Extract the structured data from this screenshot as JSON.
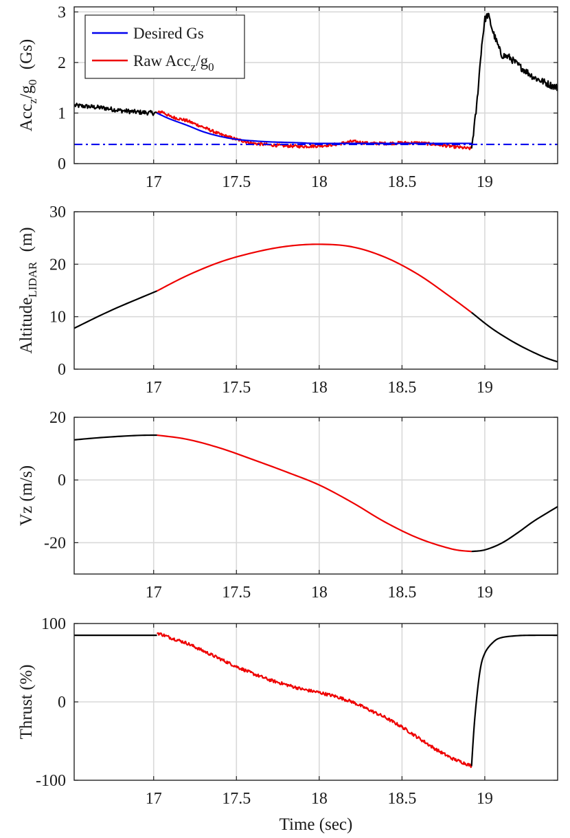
{
  "colors": {
    "desired": "#0000ee",
    "raw": "#ee0000",
    "active": "#ee0000",
    "outside": "#000000"
  },
  "chart_data": [
    {
      "id": "acc",
      "type": "line",
      "ylabel_main": "Acc",
      "ylabel_sub1": "z",
      "ylabel_mid": "/g",
      "ylabel_sub2": "0",
      "ylabel_unit": "(Gs)",
      "xlim": [
        16.52,
        19.44
      ],
      "ylim": [
        0,
        3.1
      ],
      "xticks": [
        17,
        17.5,
        18,
        18.5,
        19
      ],
      "xtick_labels": [
        "17",
        "17.5",
        "18",
        "18.5",
        "19"
      ],
      "yticks": [
        0,
        1,
        2,
        3
      ],
      "ytick_labels": [
        "0",
        "1",
        "2",
        "3"
      ],
      "legend": [
        {
          "label": "Desired Gs",
          "color_key": "desired"
        },
        {
          "label_main": "Raw Acc",
          "label_sub1": "z",
          "label_mid": "/g",
          "label_sub2": "0",
          "color_key": "raw"
        }
      ],
      "series": [
        {
          "name": "Raw Acc_z/g_0 (pre)",
          "color_key": "outside",
          "noise": 0.045,
          "x": [
            16.52,
            16.6,
            16.7,
            16.8,
            16.9,
            17.0,
            17.02
          ],
          "y": [
            1.15,
            1.13,
            1.1,
            1.05,
            1.02,
            1.0,
            1.0
          ]
        },
        {
          "name": "Raw Acc_z/g_0",
          "color_key": "raw",
          "noise": 0.03,
          "x": [
            17.02,
            17.05,
            17.1,
            17.2,
            17.3,
            17.4,
            17.5,
            17.6,
            17.7,
            17.8,
            17.9,
            18.0,
            18.1,
            18.2,
            18.3,
            18.4,
            18.5,
            18.6,
            18.7,
            18.8,
            18.9,
            18.92
          ],
          "y": [
            1.0,
            1.03,
            0.93,
            0.85,
            0.72,
            0.58,
            0.48,
            0.4,
            0.37,
            0.35,
            0.34,
            0.35,
            0.38,
            0.44,
            0.4,
            0.4,
            0.41,
            0.41,
            0.38,
            0.34,
            0.3,
            0.3
          ]
        },
        {
          "name": "Raw Acc_z/g_0 (post)",
          "color_key": "outside",
          "noise": 0.07,
          "x": [
            18.92,
            18.95,
            18.98,
            19.0,
            19.02,
            19.05,
            19.1,
            19.15,
            19.2,
            19.3,
            19.4,
            19.44
          ],
          "y": [
            0.3,
            1.1,
            2.3,
            2.85,
            2.95,
            2.6,
            2.15,
            2.1,
            1.95,
            1.7,
            1.55,
            1.5
          ]
        },
        {
          "name": "Desired Gs",
          "color_key": "desired",
          "noise": 0,
          "x": [
            17.02,
            17.1,
            17.2,
            17.3,
            17.4,
            17.5,
            17.6,
            17.7,
            17.8,
            17.9,
            18.0,
            18.5,
            18.92
          ],
          "y": [
            1.0,
            0.88,
            0.76,
            0.63,
            0.54,
            0.48,
            0.45,
            0.43,
            0.42,
            0.41,
            0.4,
            0.4,
            0.4
          ]
        },
        {
          "name": "Desired Gs reference",
          "color_key": "desired",
          "dash": true,
          "noise": 0,
          "x": [
            16.52,
            19.44
          ],
          "y": [
            0.38,
            0.38
          ]
        }
      ]
    },
    {
      "id": "alt",
      "type": "line",
      "ylabel_main": "Altitude",
      "ylabel_sub1": "LIDAR",
      "ylabel_mid": "",
      "ylabel_sub2": "",
      "ylabel_unit": "(m)",
      "xlim": [
        16.52,
        19.44
      ],
      "ylim": [
        0,
        30
      ],
      "xticks": [
        17,
        17.5,
        18,
        18.5,
        19
      ],
      "xtick_labels": [
        "17",
        "17.5",
        "18",
        "18.5",
        "19"
      ],
      "yticks": [
        0,
        10,
        20,
        30
      ],
      "ytick_labels": [
        "0",
        "10",
        "20",
        "30"
      ],
      "series": [
        {
          "name": "Altitude (pre)",
          "color_key": "outside",
          "noise": 0,
          "x": [
            16.52,
            16.75,
            17.02
          ],
          "y": [
            7.8,
            11.3,
            14.9
          ]
        },
        {
          "name": "Altitude_LIDAR",
          "color_key": "active",
          "noise": 0,
          "x": [
            17.02,
            17.2,
            17.4,
            17.6,
            17.8,
            18.0,
            18.2,
            18.4,
            18.6,
            18.8,
            18.92
          ],
          "y": [
            14.9,
            17.8,
            20.4,
            22.2,
            23.4,
            23.8,
            23.3,
            21.3,
            18.0,
            13.6,
            10.8
          ]
        },
        {
          "name": "Altitude (post)",
          "color_key": "outside",
          "noise": 0,
          "x": [
            18.92,
            19.05,
            19.2,
            19.35,
            19.44
          ],
          "y": [
            10.8,
            7.6,
            4.7,
            2.4,
            1.4
          ]
        }
      ]
    },
    {
      "id": "vz",
      "type": "line",
      "ylabel_main": "Vz (m/s)",
      "ylabel_sub1": "",
      "ylabel_mid": "",
      "ylabel_sub2": "",
      "ylabel_unit": "",
      "xlim": [
        16.52,
        19.44
      ],
      "ylim": [
        -30,
        20
      ],
      "xticks": [
        17,
        17.5,
        18,
        18.5,
        19
      ],
      "xtick_labels": [
        "17",
        "17.5",
        "18",
        "18.5",
        "19"
      ],
      "yticks": [
        -20,
        0,
        20
      ],
      "ytick_labels": [
        "-20",
        "0",
        "20"
      ],
      "series": [
        {
          "name": "Vz (pre)",
          "color_key": "outside",
          "noise": 0,
          "x": [
            16.52,
            16.7,
            16.9,
            17.02
          ],
          "y": [
            12.8,
            13.6,
            14.2,
            14.3
          ]
        },
        {
          "name": "Vz",
          "color_key": "active",
          "noise": 0,
          "x": [
            17.02,
            17.2,
            17.4,
            17.6,
            17.8,
            18.0,
            18.2,
            18.4,
            18.6,
            18.8,
            18.92
          ],
          "y": [
            14.3,
            13.0,
            10.2,
            6.5,
            2.6,
            -1.6,
            -7.2,
            -13.5,
            -18.6,
            -22.0,
            -22.8
          ]
        },
        {
          "name": "Vz (post)",
          "color_key": "outside",
          "noise": 0,
          "x": [
            18.92,
            19.0,
            19.1,
            19.2,
            19.3,
            19.44
          ],
          "y": [
            -22.8,
            -22.3,
            -20.2,
            -16.8,
            -13.0,
            -8.5
          ]
        }
      ]
    },
    {
      "id": "thrust",
      "type": "line",
      "ylabel_main": "Thrust (%)",
      "ylabel_sub1": "",
      "ylabel_mid": "",
      "ylabel_sub2": "",
      "ylabel_unit": "",
      "xlabel": "Time (sec)",
      "xlim": [
        16.52,
        19.44
      ],
      "ylim": [
        -100,
        100
      ],
      "xticks": [
        17,
        17.5,
        18,
        18.5,
        19
      ],
      "xtick_labels": [
        "17",
        "17.5",
        "18",
        "18.5",
        "19"
      ],
      "yticks": [
        -100,
        0,
        100
      ],
      "ytick_labels": [
        "-100",
        "0",
        "100"
      ],
      "series": [
        {
          "name": "Thrust (pre)",
          "color_key": "outside",
          "noise": 0,
          "x": [
            16.52,
            17.02
          ],
          "y": [
            85,
            85
          ]
        },
        {
          "name": "Thrust",
          "color_key": "active",
          "noise": 2.0,
          "x": [
            17.02,
            17.05,
            17.1,
            17.2,
            17.3,
            17.4,
            17.5,
            17.6,
            17.7,
            17.8,
            17.9,
            18.0,
            18.1,
            18.2,
            18.3,
            18.4,
            18.5,
            18.6,
            18.7,
            18.8,
            18.9,
            18.92
          ],
          "y": [
            88,
            86,
            82,
            75,
            65,
            55,
            45,
            36,
            28,
            22,
            16,
            12,
            7,
            0,
            -10,
            -20,
            -32,
            -46,
            -60,
            -72,
            -80,
            -82
          ]
        },
        {
          "name": "Thrust (post)",
          "color_key": "outside",
          "noise": 0,
          "x": [
            18.92,
            18.94,
            18.97,
            19.0,
            19.05,
            19.1,
            19.2,
            19.3,
            19.44
          ],
          "y": [
            -82,
            -20,
            38,
            62,
            76,
            82,
            84.5,
            85,
            85
          ]
        }
      ]
    }
  ]
}
